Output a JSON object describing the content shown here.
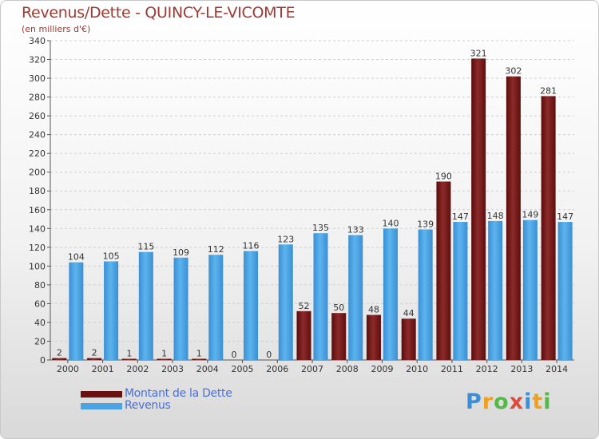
{
  "title": "Revenus/Dette - QUINCY-LE-VICOMTE",
  "subtitle": "(en milliers d'€)",
  "chart_data": {
    "type": "bar",
    "categories": [
      "2000",
      "2001",
      "2002",
      "2003",
      "2004",
      "2005",
      "2006",
      "2007",
      "2008",
      "2009",
      "2010",
      "2011",
      "2012",
      "2013",
      "2014"
    ],
    "series": [
      {
        "name": "Montant de la Dette",
        "color": "#7a1515",
        "values": [
          2,
          2,
          1,
          1,
          1,
          0,
          0,
          52,
          50,
          48,
          44,
          190,
          321,
          302,
          281
        ]
      },
      {
        "name": "Revenus",
        "color": "#4ba3e3",
        "values": [
          104,
          105,
          115,
          109,
          112,
          116,
          123,
          135,
          133,
          140,
          139,
          147,
          148,
          149,
          147
        ]
      }
    ],
    "ylim": [
      0,
      340
    ],
    "yticks": [
      0,
      20,
      40,
      60,
      80,
      100,
      120,
      140,
      160,
      180,
      200,
      220,
      240,
      260,
      280,
      300,
      320,
      340
    ],
    "xlabel": "",
    "ylabel": "",
    "grid": true
  },
  "legend": {
    "items": [
      {
        "label": "Montant de la Dette",
        "color": "#6b1010"
      },
      {
        "label": "Revenus",
        "color": "#4ba3e3"
      }
    ]
  },
  "logo": {
    "letters": [
      "P",
      "r",
      "o",
      "x",
      "i",
      "t",
      "i"
    ],
    "colors": [
      "#3c8fd6",
      "#f0a020",
      "#56b848",
      "#e04a3c",
      "#3c8fd6",
      "#f0a020",
      "#56b848"
    ]
  }
}
